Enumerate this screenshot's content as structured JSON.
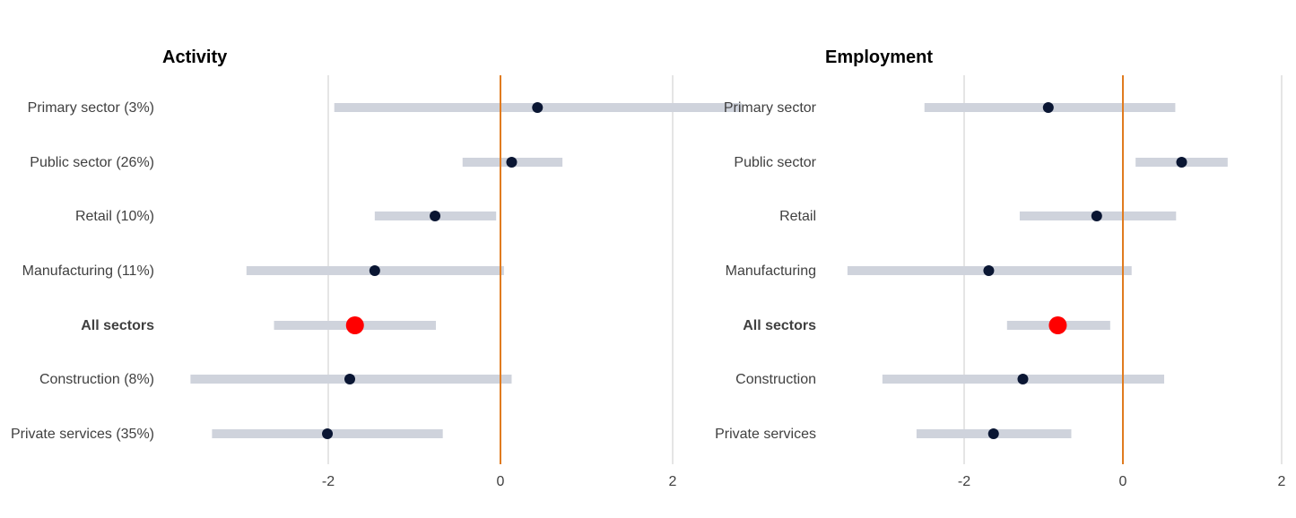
{
  "colors": {
    "range": "#cfd3dc",
    "point": "#0a1633",
    "highlight": "#ff0000",
    "zero_line": "#e07b1f",
    "grid": "#e5e5e5"
  },
  "chart_data": [
    {
      "type": "dot-range",
      "title": "Activity",
      "xlim": [
        -4,
        3
      ],
      "xticks": [
        "-2",
        "0",
        "2"
      ],
      "xtick_values": [
        -2,
        0,
        2
      ],
      "categories": [
        "Primary sector (3%)",
        "Public sector (26%)",
        "Retail (10%)",
        "Manufacturing (11%)",
        "All sectors",
        "Construction (8%)",
        "Private services (35%)"
      ],
      "highlight": "All sectors",
      "points": [
        0.43,
        0.13,
        -0.76,
        -1.46,
        -1.69,
        -1.75,
        -2.01
      ],
      "low": [
        -1.93,
        -0.44,
        -1.46,
        -2.95,
        -2.63,
        -3.6,
        -3.35
      ],
      "high": [
        2.8,
        0.72,
        -0.05,
        0.04,
        -0.75,
        0.13,
        -0.67
      ]
    },
    {
      "type": "dot-range",
      "title": "Employment",
      "xlim": [
        -4,
        2
      ],
      "xticks": [
        "-2",
        "0",
        "2"
      ],
      "xtick_values": [
        -2,
        0,
        2
      ],
      "categories": [
        "Primary sector",
        "Public sector",
        "Retail",
        "Manufacturing",
        "All sectors",
        "Construction",
        "Private services"
      ],
      "highlight": "All sectors",
      "points": [
        -0.94,
        0.74,
        -0.33,
        -1.69,
        -0.82,
        -1.26,
        -1.63
      ],
      "low": [
        -2.5,
        0.16,
        -1.3,
        -3.47,
        -1.46,
        -3.03,
        -2.6
      ],
      "high": [
        0.66,
        1.32,
        0.67,
        0.11,
        -0.16,
        0.52,
        -0.65
      ]
    }
  ]
}
